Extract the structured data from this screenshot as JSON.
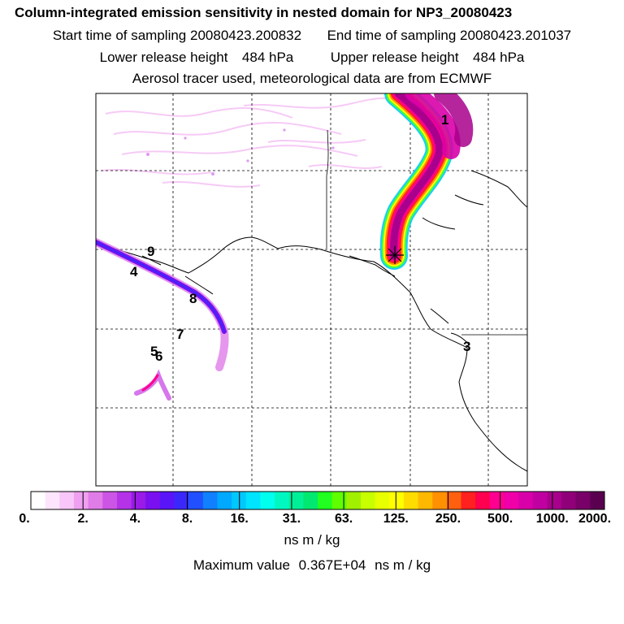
{
  "title": "Column-integrated emission sensitivity in nested domain for NP3_20080423",
  "sampling": {
    "start_label": "Start time of sampling",
    "start_value": "20080423.200832",
    "end_label": "End time of sampling",
    "end_value": "20080423.201037"
  },
  "release": {
    "lower_label": "Lower release height",
    "lower_value": "484 hPa",
    "upper_label": "Upper release height",
    "upper_value": "484 hPa"
  },
  "note": "Aerosol tracer used, meteorological data are from ECMWF",
  "map_labels": [
    "1",
    "4",
    "9",
    "8",
    "7",
    "5",
    "6",
    "3"
  ],
  "colorbar": {
    "tick_labels": [
      "0.",
      "2.",
      "4.",
      "8.",
      "16.",
      "31.",
      "63.",
      "125.",
      "250.",
      "500.",
      "1000.",
      "2000."
    ],
    "colors": [
      "#ffffff",
      "#fde6fd",
      "#f8c6f8",
      "#f0a0f0",
      "#e07ce8",
      "#cc55e6",
      "#b433e8",
      "#9a1ae6",
      "#7a10f0",
      "#5a14f8",
      "#3a28fa",
      "#2050ff",
      "#1080ff",
      "#00a8ff",
      "#00c8ff",
      "#00e4ff",
      "#00ffee",
      "#00f8c0",
      "#00f098",
      "#00e870",
      "#20ff20",
      "#60ff00",
      "#a0f000",
      "#c8ff00",
      "#e8ff00",
      "#ffff00",
      "#ffdc00",
      "#ffb800",
      "#ff9000",
      "#ff6010",
      "#ff2020",
      "#ff0050",
      "#ff0090",
      "#f000a8",
      "#d800a8",
      "#c000a0",
      "#a8008c",
      "#900078",
      "#780068",
      "#5a0050"
    ],
    "units": "ns m / kg"
  },
  "maximum": {
    "label": "Maximum value",
    "value": "0.367E+04",
    "units": "ns m / kg"
  }
}
